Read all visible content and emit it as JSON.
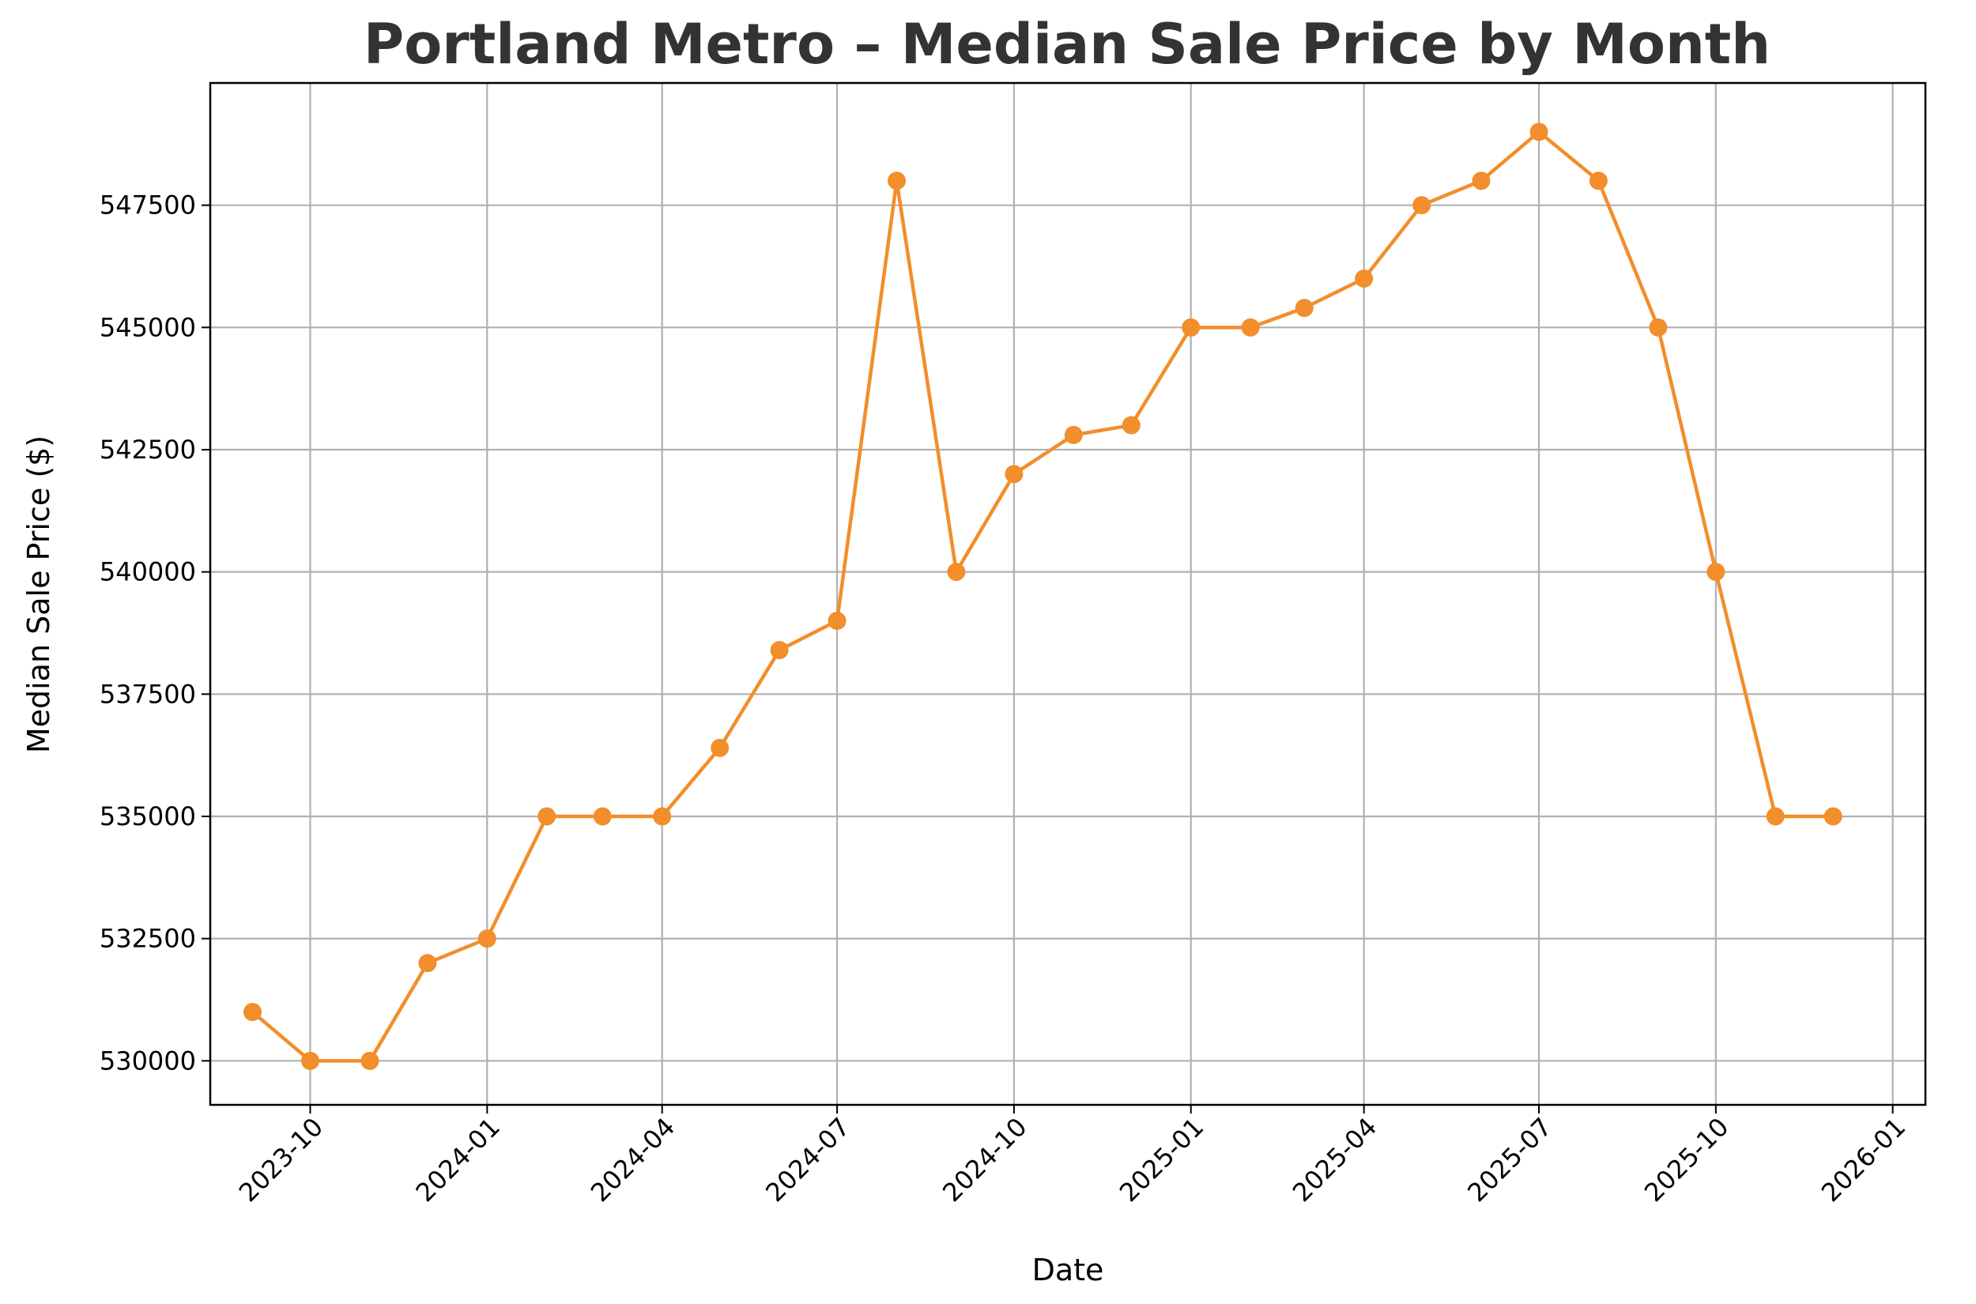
{
  "chart_data": {
    "type": "line",
    "title": "Portland Metro – Median Sale Price by Month",
    "xlabel": "Date",
    "ylabel": "Median Sale Price ($)",
    "grid": true,
    "color": "#f28e2b",
    "x_ticks": [
      "2023-10",
      "2024-01",
      "2024-04",
      "2024-07",
      "2024-10",
      "2025-01",
      "2025-04",
      "2025-07",
      "2025-10",
      "2026-01"
    ],
    "y_ticks": [
      530000,
      532500,
      535000,
      537500,
      540000,
      542500,
      545000,
      547500
    ],
    "ylim": [
      529100,
      550000
    ],
    "xlim": [
      "2023-08-10",
      "2026-01-18"
    ],
    "series": [
      {
        "name": "Median Sale Price",
        "x": [
          "2023-09-01",
          "2023-10-01",
          "2023-11-01",
          "2023-12-01",
          "2024-01-01",
          "2024-02-01",
          "2024-03-01",
          "2024-04-01",
          "2024-05-01",
          "2024-06-01",
          "2024-07-01",
          "2024-08-01",
          "2024-09-01",
          "2024-10-01",
          "2024-11-01",
          "2024-12-01",
          "2025-01-01",
          "2025-02-01",
          "2025-03-01",
          "2025-04-01",
          "2025-05-01",
          "2025-06-01",
          "2025-07-01",
          "2025-08-01",
          "2025-09-01",
          "2025-10-01",
          "2025-11-01",
          "2025-12-01"
        ],
        "values": [
          531000,
          530000,
          530000,
          532000,
          532500,
          535000,
          535000,
          535000,
          536400,
          538400,
          539000,
          548000,
          540000,
          542000,
          542800,
          543000,
          545000,
          545000,
          545400,
          546000,
          547500,
          548000,
          549000,
          548000,
          545000,
          540000,
          535000,
          535000
        ]
      }
    ]
  }
}
